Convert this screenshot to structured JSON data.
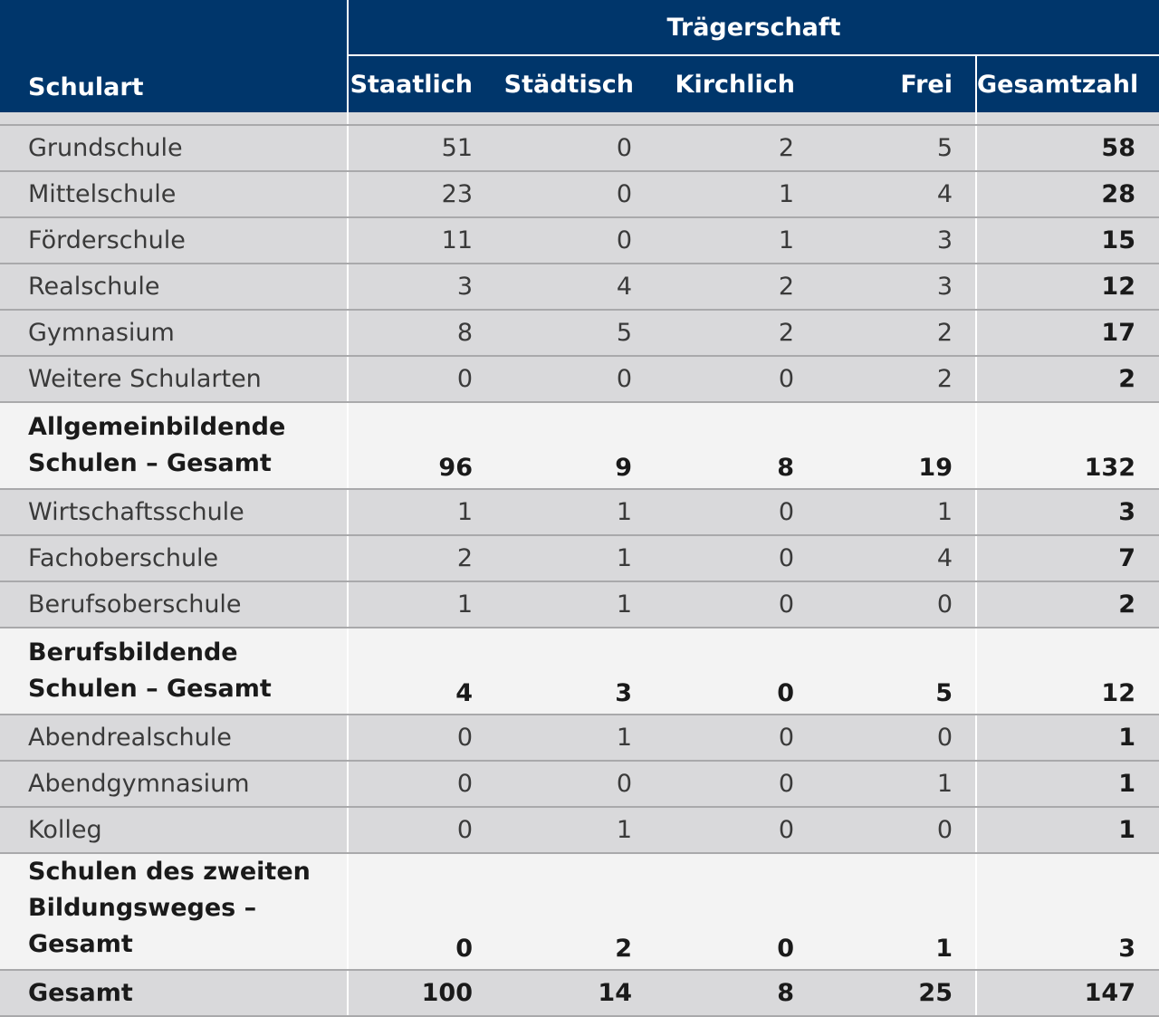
{
  "header": {
    "schulart": "Schulart",
    "group": "Trägerschaft",
    "columns": [
      "Staatlich",
      "Städtisch",
      "Kirchlich",
      "Frei",
      "Gesamtzahl"
    ]
  },
  "rows": [
    {
      "type": "normal",
      "label": "Grundschule",
      "values": [
        "51",
        "0",
        "2",
        "5",
        "58"
      ]
    },
    {
      "type": "normal",
      "label": "Mittelschule",
      "values": [
        "23",
        "0",
        "1",
        "4",
        "28"
      ]
    },
    {
      "type": "normal",
      "label": "Förderschule",
      "values": [
        "11",
        "0",
        "1",
        "3",
        "15"
      ]
    },
    {
      "type": "normal",
      "label": "Realschule",
      "values": [
        "3",
        "4",
        "2",
        "3",
        "12"
      ]
    },
    {
      "type": "normal",
      "label": "Gymnasium",
      "values": [
        "8",
        "5",
        "2",
        "2",
        "17"
      ]
    },
    {
      "type": "normal",
      "label": "Weitere Schularten",
      "values": [
        "0",
        "0",
        "0",
        "2",
        "2"
      ]
    },
    {
      "type": "subtotal",
      "label_line1": "Allgemeinbildende",
      "label_line2": "Schulen – Gesamt",
      "values": [
        "96",
        "9",
        "8",
        "19",
        "132"
      ]
    },
    {
      "type": "normal",
      "label": "Wirtschaftsschule",
      "values": [
        "1",
        "1",
        "0",
        "1",
        "3"
      ]
    },
    {
      "type": "normal",
      "label": "Fachoberschule",
      "values": [
        "2",
        "1",
        "0",
        "4",
        "7"
      ]
    },
    {
      "type": "normal",
      "label": "Berufsoberschule",
      "values": [
        "1",
        "1",
        "0",
        "0",
        "2"
      ]
    },
    {
      "type": "subtotal",
      "label_line1": "Berufsbildende",
      "label_line2": "Schulen – Gesamt",
      "values": [
        "4",
        "3",
        "0",
        "5",
        "12"
      ]
    },
    {
      "type": "normal",
      "label": "Abendrealschule",
      "values": [
        "0",
        "1",
        "0",
        "0",
        "1"
      ]
    },
    {
      "type": "normal",
      "label": "Abendgymnasium",
      "values": [
        "0",
        "0",
        "0",
        "1",
        "1"
      ]
    },
    {
      "type": "normal",
      "label": "Kolleg",
      "values": [
        "0",
        "1",
        "0",
        "0",
        "1"
      ]
    },
    {
      "type": "subtotal",
      "label_line1": "Schulen des zweiten",
      "label_line2": "Bildungsweges – Gesamt",
      "values": [
        "0",
        "2",
        "0",
        "1",
        "3"
      ]
    },
    {
      "type": "total",
      "label": "Gesamt",
      "values": [
        "100",
        "14",
        "8",
        "25",
        "147"
      ]
    }
  ],
  "colors": {
    "header_bg": "#00366b",
    "header_text": "#ffffff",
    "row_bg": "#d9d9db",
    "subtotal_bg": "#f3f3f3"
  }
}
